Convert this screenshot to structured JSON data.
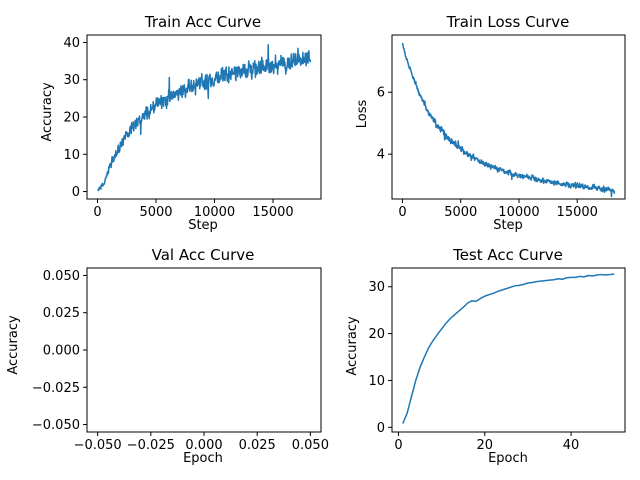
{
  "chart_data": [
    {
      "type": "line",
      "title": "Train Acc Curve",
      "xlabel": "Step",
      "ylabel": "Accuracy",
      "xlim": [
        -900,
        19100
      ],
      "ylim": [
        -2,
        42
      ],
      "xticks": [
        0,
        5000,
        10000,
        15000
      ],
      "xtick_labels": [
        "0",
        "5000",
        "10000",
        "15000"
      ],
      "yticks": [
        0,
        10,
        20,
        30,
        40
      ],
      "ytick_labels": [
        "0",
        "10",
        "20",
        "30",
        "40"
      ],
      "grid": false,
      "noisy": true,
      "series": [
        {
          "x": [
            0,
            500,
            1000,
            1500,
            2000,
            2500,
            3000,
            3500,
            4000,
            5000,
            6000,
            7000,
            8000,
            9000,
            10000,
            11000,
            12000,
            13000,
            14000,
            15000,
            16000,
            17000,
            18200
          ],
          "y": [
            0.3,
            2.0,
            6.0,
            9.5,
            13.0,
            15.5,
            17.5,
            19.0,
            20.5,
            23.0,
            25.0,
            26.7,
            28.0,
            29.3,
            30.3,
            31.3,
            32.0,
            32.8,
            33.4,
            34.0,
            34.6,
            35.0,
            35.5
          ],
          "noise": [
            0.3,
            0.5,
            0.8,
            1.0,
            1.1,
            1.2,
            1.3,
            1.4,
            1.5,
            1.6,
            1.7,
            1.7,
            1.8,
            1.8,
            1.8,
            1.8,
            1.8,
            1.8,
            1.8,
            1.8,
            1.8,
            1.8,
            1.8
          ]
        }
      ]
    },
    {
      "type": "line",
      "title": "Train Loss Curve",
      "xlabel": "Step",
      "ylabel": "Loss",
      "xlim": [
        -900,
        19100
      ],
      "ylim": [
        2.55,
        7.85
      ],
      "xticks": [
        0,
        5000,
        10000,
        15000
      ],
      "xtick_labels": [
        "0",
        "5000",
        "10000",
        "15000"
      ],
      "yticks": [
        4,
        6
      ],
      "ytick_labels": [
        "4",
        "6"
      ],
      "grid": false,
      "noisy": true,
      "series": [
        {
          "x": [
            0,
            250,
            500,
            1000,
            1500,
            2000,
            2500,
            3000,
            4000,
            5000,
            6000,
            7000,
            8000,
            9000,
            10000,
            11000,
            12000,
            13000,
            14000,
            15000,
            16000,
            17000,
            18200
          ],
          "y": [
            7.6,
            7.2,
            6.95,
            6.4,
            5.9,
            5.5,
            5.2,
            4.95,
            4.5,
            4.15,
            3.9,
            3.7,
            3.55,
            3.42,
            3.32,
            3.22,
            3.15,
            3.08,
            3.02,
            2.97,
            2.93,
            2.88,
            2.83
          ],
          "noise": [
            0.02,
            0.05,
            0.06,
            0.07,
            0.08,
            0.08,
            0.08,
            0.08,
            0.08,
            0.08,
            0.08,
            0.07,
            0.07,
            0.07,
            0.07,
            0.07,
            0.07,
            0.07,
            0.07,
            0.07,
            0.07,
            0.07,
            0.07
          ]
        }
      ]
    },
    {
      "type": "line",
      "title": "Val Acc Curve",
      "xlabel": "Epoch",
      "ylabel": "Accuracy",
      "xlim": [
        -0.055,
        0.055
      ],
      "ylim": [
        -0.055,
        0.055
      ],
      "xticks": [
        -0.05,
        -0.025,
        0,
        0.025,
        0.05
      ],
      "xtick_labels": [
        "−0.050",
        "−0.025",
        "0.000",
        "0.025",
        "0.050"
      ],
      "yticks": [
        -0.05,
        -0.025,
        0,
        0.025,
        0.05
      ],
      "ytick_labels": [
        "−0.050",
        "−0.025",
        "0.000",
        "0.025",
        "0.050"
      ],
      "grid": false,
      "noisy": false,
      "series": []
    },
    {
      "type": "line",
      "title": "Test Acc Curve",
      "xlabel": "Epoch",
      "ylabel": "Accuracy",
      "xlim": [
        -1.5,
        52.5
      ],
      "ylim": [
        -1,
        34
      ],
      "xticks": [
        0,
        20,
        40
      ],
      "xtick_labels": [
        "0",
        "20",
        "40"
      ],
      "yticks": [
        0,
        10,
        20,
        30
      ],
      "ytick_labels": [
        "0",
        "10",
        "20",
        "30"
      ],
      "grid": false,
      "noisy": false,
      "series": [
        {
          "x": [
            1,
            2,
            3,
            4,
            5,
            6,
            7,
            8,
            9,
            10,
            11,
            12,
            13,
            14,
            15,
            16,
            17,
            18,
            19,
            20,
            21,
            22,
            23,
            24,
            25,
            26,
            27,
            28,
            29,
            30,
            31,
            32,
            33,
            34,
            35,
            36,
            37,
            38,
            39,
            40,
            41,
            42,
            43,
            44,
            45,
            46,
            47,
            48,
            49,
            50
          ],
          "y": [
            0.8,
            3.0,
            6.5,
            10.0,
            12.8,
            15.0,
            17.0,
            18.5,
            19.8,
            21.0,
            22.2,
            23.2,
            24.0,
            24.8,
            25.6,
            26.5,
            27.0,
            26.9,
            27.5,
            28.0,
            28.3,
            28.6,
            29.0,
            29.3,
            29.6,
            29.9,
            30.2,
            30.3,
            30.5,
            30.8,
            30.9,
            31.1,
            31.2,
            31.3,
            31.4,
            31.5,
            31.7,
            31.6,
            31.9,
            32.0,
            32.0,
            32.2,
            32.1,
            32.4,
            32.3,
            32.5,
            32.6,
            32.5,
            32.6,
            32.7
          ]
        }
      ]
    }
  ]
}
